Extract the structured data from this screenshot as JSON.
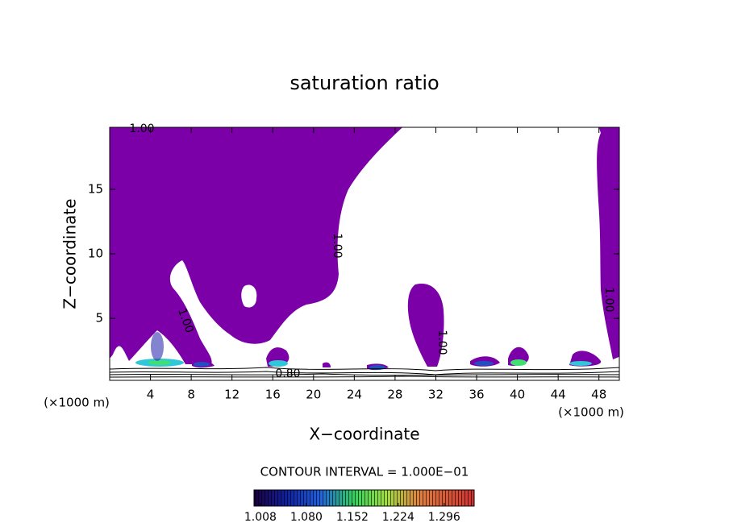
{
  "chart_data": {
    "type": "contour",
    "title": "saturation ratio",
    "xlabel": "X−coordinate",
    "ylabel": "Z−coordinate",
    "x_unit": "(×1000 m)",
    "y_unit": "(×1000 m)",
    "xlim": [
      0,
      50
    ],
    "ylim": [
      0.2,
      19.8
    ],
    "xticks": [
      4,
      8,
      12,
      16,
      20,
      24,
      28,
      32,
      36,
      40,
      44,
      48
    ],
    "yticks": [
      5,
      10,
      15
    ],
    "contour_levels": [
      {
        "value": 0.8,
        "label": "0.80"
      },
      {
        "value": 1,
        "label": "1.00"
      }
    ],
    "fill_color": "#7b00a8",
    "contour_interval_text": "CONTOUR INTERVAL = 1.000E−01",
    "colorbar_lim": [
      0.998,
      1.343
    ],
    "colorbar_ticks": [
      1.008,
      {
        "value": 1.08,
        "label": "1.080"
      },
      1.152,
      1.224,
      1.296
    ]
  }
}
